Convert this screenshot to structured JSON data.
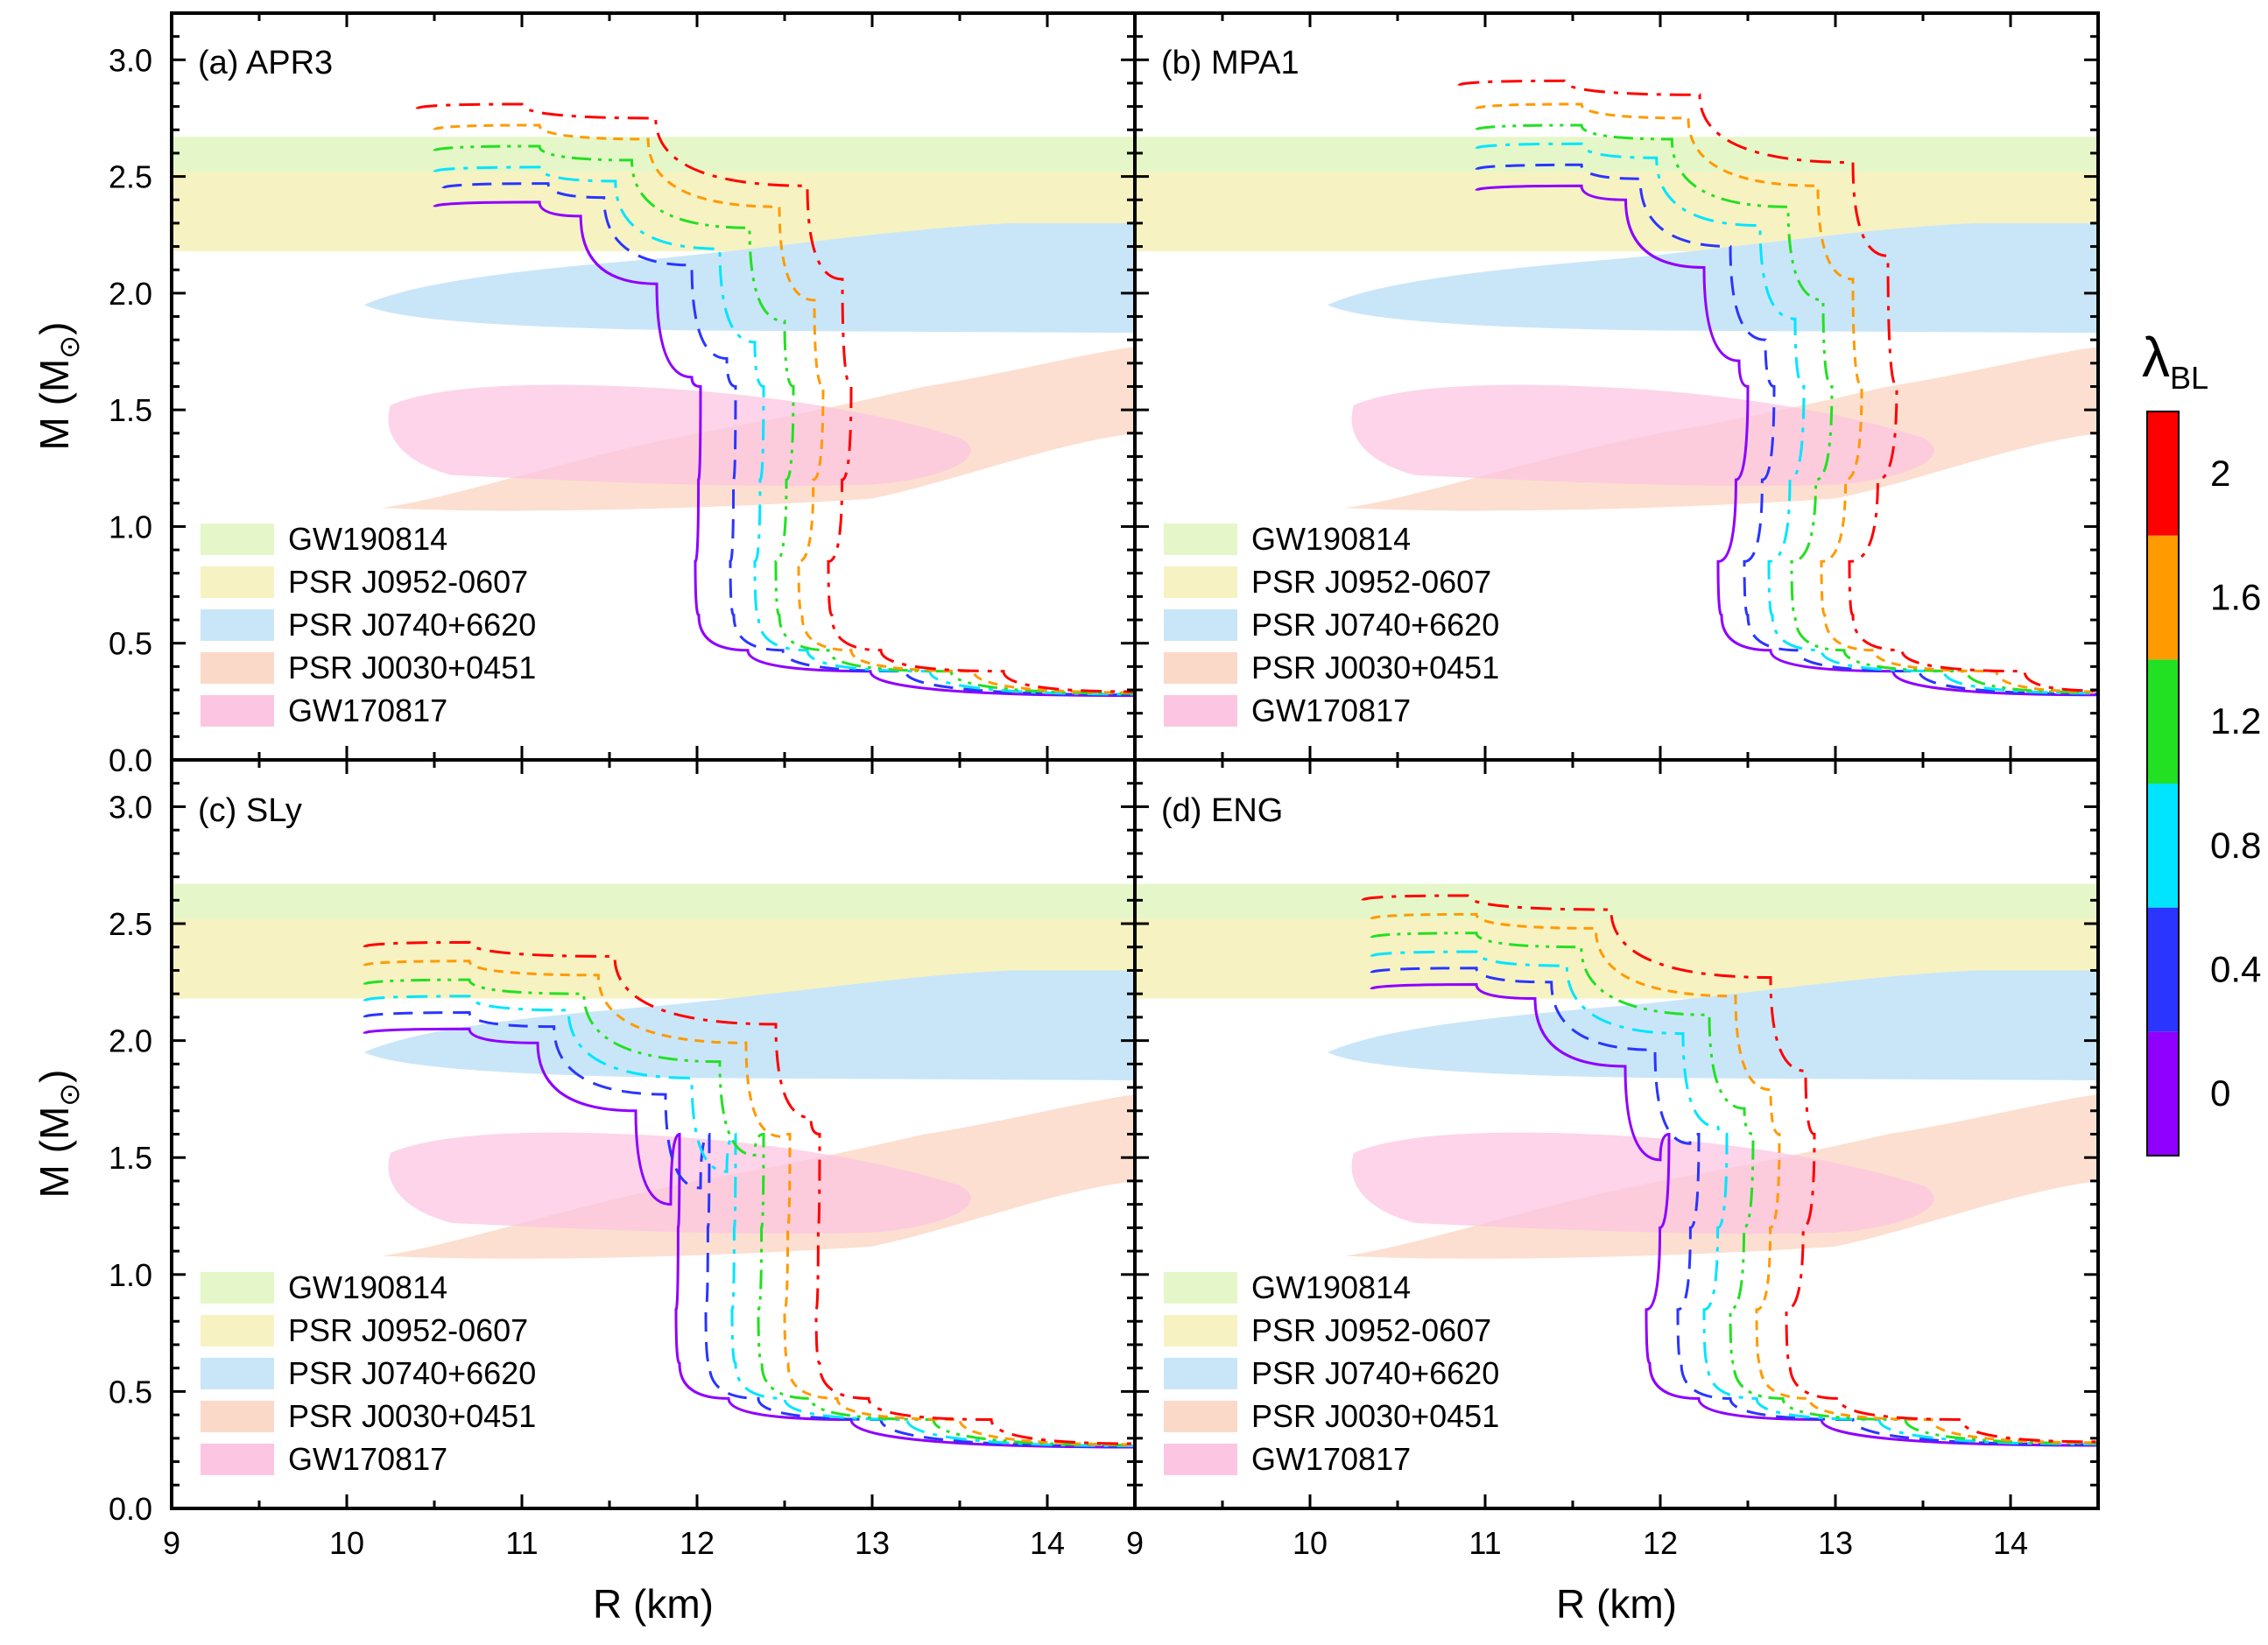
{
  "figure": {
    "ylabel_main": "M (M",
    "ylabel_sub": "⊙",
    "ylabel_close": ")",
    "xlabel": "R (km)",
    "colorbar": {
      "label_main": "λ",
      "label_sub": "BL",
      "ticks": [
        "0",
        "0.4",
        "0.8",
        "1.2",
        "1.6",
        "2"
      ],
      "colors": [
        "#8f00ff",
        "#2a35ff",
        "#00e5ff",
        "#22e022",
        "#ff9a00",
        "#ff0000"
      ]
    }
  },
  "chart_data": [
    {
      "type": "line",
      "panel_label": "(a) APR3",
      "xlim": [
        9,
        14.5
      ],
      "ylim": [
        0,
        3.2
      ],
      "xticks": [
        9,
        10,
        11,
        12,
        13,
        14
      ],
      "yticks": [
        0.0,
        0.5,
        1.0,
        1.5,
        2.0,
        2.5,
        3.0
      ],
      "grid": false,
      "legend_position": "bottom-left",
      "legend": [
        "GW190814",
        "PSR J0952-0607",
        "PSR J0740+6620",
        "PSR J0030+0451",
        "GW170817"
      ],
      "series": [
        {
          "lambda": "0",
          "color": "#8f00ff",
          "dash": "solid",
          "r_min": 11.99,
          "r_knee": 12.02,
          "r_top": 10.5,
          "m_max": 2.39
        },
        {
          "lambda": "0.4",
          "color": "#2a35ff",
          "dash": "dash",
          "r_min": 12.19,
          "r_knee": 12.22,
          "r_top": 10.55,
          "m_max": 2.47
        },
        {
          "lambda": "0.8",
          "color": "#00e5ff",
          "dash": "dashdot",
          "r_min": 12.33,
          "r_knee": 12.38,
          "r_top": 10.5,
          "m_max": 2.54
        },
        {
          "lambda": "1.2",
          "color": "#22e022",
          "dash": "dashdotdot",
          "r_min": 12.45,
          "r_knee": 12.55,
          "r_top": 10.5,
          "m_max": 2.63
        },
        {
          "lambda": "1.6",
          "color": "#ff9a00",
          "dash": "shortdash",
          "r_min": 12.58,
          "r_knee": 12.72,
          "r_top": 10.5,
          "m_max": 2.72
        },
        {
          "lambda": "2",
          "color": "#ff0000",
          "dash": "dashdot",
          "r_min": 12.75,
          "r_knee": 12.88,
          "r_top": 10.4,
          "m_max": 2.81
        }
      ]
    },
    {
      "type": "line",
      "panel_label": "(b) MPA1",
      "xlim": [
        9,
        14.5
      ],
      "ylim": [
        0,
        3.2
      ],
      "xticks": [
        9,
        10,
        11,
        12,
        13,
        14
      ],
      "yticks": [
        0.0,
        0.5,
        1.0,
        1.5,
        2.0,
        2.5,
        3.0
      ],
      "grid": false,
      "legend_position": "bottom-left",
      "legend": [
        "GW190814",
        "PSR J0952-0607",
        "PSR J0740+6620",
        "PSR J0030+0451",
        "GW170817"
      ],
      "series": [
        {
          "lambda": "0",
          "color": "#8f00ff",
          "dash": "solid",
          "r_min": 12.33,
          "r_knee": 12.5,
          "r_top": 10.95,
          "m_max": 2.46
        },
        {
          "lambda": "0.4",
          "color": "#2a35ff",
          "dash": "dash",
          "r_min": 12.48,
          "r_knee": 12.65,
          "r_top": 10.95,
          "m_max": 2.55
        },
        {
          "lambda": "0.8",
          "color": "#00e5ff",
          "dash": "dashdot",
          "r_min": 12.62,
          "r_knee": 12.82,
          "r_top": 10.95,
          "m_max": 2.64
        },
        {
          "lambda": "1.2",
          "color": "#22e022",
          "dash": "dashdotdot",
          "r_min": 12.75,
          "r_knee": 12.98,
          "r_top": 10.95,
          "m_max": 2.72
        },
        {
          "lambda": "1.6",
          "color": "#ff9a00",
          "dash": "shortdash",
          "r_min": 12.92,
          "r_knee": 13.15,
          "r_top": 10.95,
          "m_max": 2.81
        },
        {
          "lambda": "2",
          "color": "#ff0000",
          "dash": "dashdot",
          "r_min": 13.08,
          "r_knee": 13.35,
          "r_top": 10.85,
          "m_max": 2.91
        }
      ]
    },
    {
      "type": "line",
      "panel_label": "(c) SLy",
      "xlim": [
        9,
        14.5
      ],
      "ylim": [
        0,
        3.2
      ],
      "xticks": [
        9,
        10,
        11,
        12,
        13,
        14
      ],
      "yticks": [
        0.0,
        0.5,
        1.0,
        1.5,
        2.0,
        2.5,
        3.0
      ],
      "grid": false,
      "legend_position": "bottom-left",
      "legend": [
        "GW190814",
        "PSR J0952-0607",
        "PSR J0740+6620",
        "PSR J0030+0451",
        "GW170817"
      ],
      "series": [
        {
          "lambda": "0",
          "color": "#8f00ff",
          "dash": "solid",
          "r_min": 11.88,
          "r_knee": 11.9,
          "r_top": 10.1,
          "m_max": 2.05
        },
        {
          "lambda": "0.4",
          "color": "#2a35ff",
          "dash": "dash",
          "r_min": 12.05,
          "r_knee": 12.07,
          "r_top": 10.1,
          "m_max": 2.12
        },
        {
          "lambda": "0.8",
          "color": "#00e5ff",
          "dash": "dashdot",
          "r_min": 12.2,
          "r_knee": 12.22,
          "r_top": 10.1,
          "m_max": 2.19
        },
        {
          "lambda": "1.2",
          "color": "#22e022",
          "dash": "dashdotdot",
          "r_min": 12.35,
          "r_knee": 12.38,
          "r_top": 10.1,
          "m_max": 2.26
        },
        {
          "lambda": "1.6",
          "color": "#ff9a00",
          "dash": "shortdash",
          "r_min": 12.5,
          "r_knee": 12.53,
          "r_top": 10.1,
          "m_max": 2.34
        },
        {
          "lambda": "2",
          "color": "#ff0000",
          "dash": "dashdot",
          "r_min": 12.68,
          "r_knee": 12.7,
          "r_top": 10.1,
          "m_max": 2.42
        }
      ]
    },
    {
      "type": "line",
      "panel_label": "(d) ENG",
      "xlim": [
        9,
        14.5
      ],
      "ylim": [
        0,
        3.2
      ],
      "xticks": [
        9,
        10,
        11,
        12,
        13,
        14
      ],
      "yticks": [
        0.0,
        0.5,
        1.0,
        1.5,
        2.0,
        2.5,
        3.0
      ],
      "grid": false,
      "legend_position": "bottom-left",
      "legend": [
        "GW190814",
        "PSR J0952-0607",
        "PSR J0740+6620",
        "PSR J0030+0451",
        "GW170817"
      ],
      "series": [
        {
          "lambda": "0",
          "color": "#8f00ff",
          "dash": "solid",
          "r_min": 11.92,
          "r_knee": 12.05,
          "r_top": 10.35,
          "m_max": 2.24
        },
        {
          "lambda": "0.4",
          "color": "#2a35ff",
          "dash": "dash",
          "r_min": 12.1,
          "r_knee": 12.22,
          "r_top": 10.35,
          "m_max": 2.31
        },
        {
          "lambda": "0.8",
          "color": "#00e5ff",
          "dash": "dashdot",
          "r_min": 12.25,
          "r_knee": 12.38,
          "r_top": 10.35,
          "m_max": 2.38
        },
        {
          "lambda": "1.2",
          "color": "#22e022",
          "dash": "dashdotdot",
          "r_min": 12.4,
          "r_knee": 12.53,
          "r_top": 10.35,
          "m_max": 2.46
        },
        {
          "lambda": "1.6",
          "color": "#ff9a00",
          "dash": "shortdash",
          "r_min": 12.55,
          "r_knee": 12.68,
          "r_top": 10.35,
          "m_max": 2.54
        },
        {
          "lambda": "2",
          "color": "#ff0000",
          "dash": "dashdot",
          "r_min": 12.72,
          "r_knee": 12.88,
          "r_top": 10.3,
          "m_max": 2.62
        }
      ]
    }
  ],
  "bands": [
    {
      "name": "GW190814",
      "color": "#e5f7c8",
      "m_range": [
        2.5,
        2.67
      ]
    },
    {
      "name": "PSR J0952-0607",
      "color": "#f7f2c2",
      "m_range": [
        2.18,
        2.52
      ]
    },
    {
      "name": "PSR J0740+6620",
      "color": "#c9e6f8",
      "r_range": [
        10.1,
        14.5
      ],
      "m_range": [
        1.83,
        2.3
      ]
    },
    {
      "name": "PSR J0030+0451",
      "color": "#fbd9c8",
      "r_range": [
        10.2,
        14.5
      ],
      "m_range": [
        1.05,
        1.77
      ]
    },
    {
      "name": "GW170817",
      "color": "#fcc6e2",
      "r_range": [
        10.2,
        13.6
      ],
      "m_range": [
        1.16,
        1.62
      ]
    }
  ]
}
